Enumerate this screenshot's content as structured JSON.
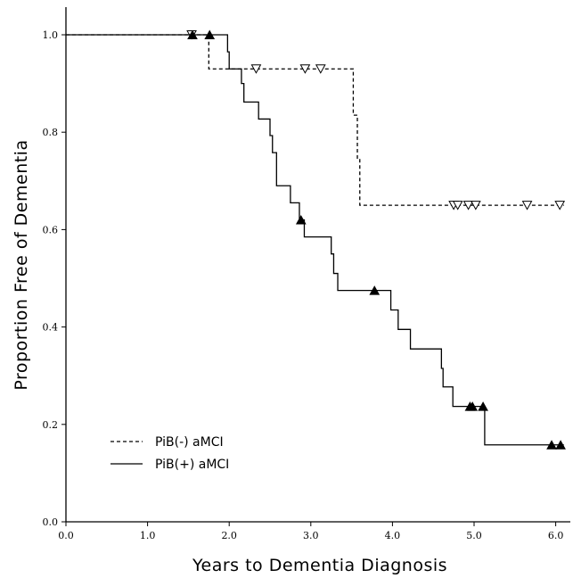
{
  "chart_data": {
    "type": "line",
    "subtype": "kaplan-meier step",
    "title": "",
    "xlabel": "Years to Dementia Diagnosis",
    "ylabel": "Proportion Free of Dementia",
    "xlim": [
      0,
      6.1
    ],
    "ylim": [
      0,
      1.06
    ],
    "xticks": [
      0,
      1,
      2,
      3,
      4,
      5,
      6
    ],
    "xtick_labels": [
      "0.0",
      "1.0",
      "2.0",
      "3.0",
      "4.0",
      "5.0",
      "6.0"
    ],
    "yticks": [
      0,
      0.2,
      0.4,
      0.6,
      0.8,
      1.0
    ],
    "ytick_labels": [
      "0.0",
      "0.2",
      "0.4",
      "0.6",
      "0.8",
      "1.0"
    ],
    "grid": false,
    "legend_position": "bottom-left",
    "series": [
      {
        "name": "PiB(-) aMCI",
        "line_style": "dashed",
        "color": "#000000",
        "censor_marker": "open-triangle-down",
        "steps": [
          [
            0,
            1.0
          ],
          [
            1.75,
            0.93
          ],
          [
            3.52,
            0.835
          ],
          [
            3.57,
            0.745
          ],
          [
            3.6,
            0.65
          ],
          [
            6.1,
            0.65
          ]
        ],
        "censored": [
          [
            1.54,
            1.0
          ],
          [
            2.33,
            0.93
          ],
          [
            2.93,
            0.93
          ],
          [
            3.12,
            0.93
          ],
          [
            4.75,
            0.65
          ],
          [
            4.8,
            0.65
          ],
          [
            4.93,
            0.65
          ],
          [
            5.02,
            0.65
          ],
          [
            5.65,
            0.65
          ],
          [
            6.05,
            0.65
          ]
        ]
      },
      {
        "name": "PiB(+) aMCI",
        "line_style": "solid",
        "color": "#000000",
        "censor_marker": "filled-triangle-up",
        "steps": [
          [
            0,
            1.0
          ],
          [
            1.98,
            0.965
          ],
          [
            2.0,
            0.93
          ],
          [
            2.15,
            0.9
          ],
          [
            2.18,
            0.862
          ],
          [
            2.36,
            0.827
          ],
          [
            2.5,
            0.793
          ],
          [
            2.53,
            0.758
          ],
          [
            2.58,
            0.69
          ],
          [
            2.75,
            0.655
          ],
          [
            2.86,
            0.62
          ],
          [
            2.92,
            0.585
          ],
          [
            3.25,
            0.55
          ],
          [
            3.28,
            0.51
          ],
          [
            3.33,
            0.475
          ],
          [
            3.98,
            0.435
          ],
          [
            4.07,
            0.395
          ],
          [
            4.22,
            0.355
          ],
          [
            4.6,
            0.315
          ],
          [
            4.62,
            0.277
          ],
          [
            4.74,
            0.237
          ],
          [
            5.13,
            0.158
          ],
          [
            6.1,
            0.158
          ]
        ],
        "censored": [
          [
            1.55,
            1.0
          ],
          [
            1.76,
            1.0
          ],
          [
            2.88,
            0.62
          ],
          [
            3.78,
            0.475
          ],
          [
            4.95,
            0.237
          ],
          [
            4.98,
            0.237
          ],
          [
            5.11,
            0.237
          ],
          [
            5.95,
            0.158
          ],
          [
            6.06,
            0.158
          ]
        ]
      }
    ]
  }
}
